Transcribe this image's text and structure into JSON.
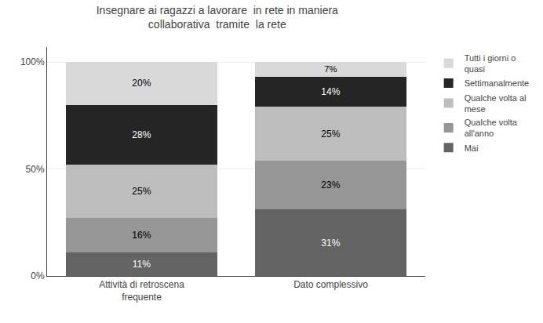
{
  "chart_data": {
    "type": "bar",
    "title": "Insegnare ai ragazzi a lavorare  in rete in maniera\ncollaborativa  tramite  la rete",
    "categories": [
      "Attività di retroscena\nfrequente",
      "Dato complessivo"
    ],
    "series": [
      {
        "name": "Mai",
        "color": "#636363",
        "values": [
          11,
          31
        ],
        "value_labels": [
          "11%",
          "31%"
        ]
      },
      {
        "name": "Qualche volta\nall'anno",
        "color": "#969696",
        "values": [
          16,
          23
        ],
        "value_labels": [
          "16%",
          "23%"
        ]
      },
      {
        "name": "Qualche volta al\nmese",
        "color": "#bdbdbd",
        "values": [
          25,
          25
        ],
        "value_labels": [
          "25%",
          "25%"
        ]
      },
      {
        "name": "Settimanalmente",
        "color": "#252525",
        "values": [
          28,
          14
        ],
        "value_labels": [
          "28%",
          "14%"
        ]
      },
      {
        "name": "Tutti i giorni o\nquasi",
        "color": "#d9d9d9",
        "values": [
          20,
          7
        ],
        "value_labels": [
          "20%",
          "7%"
        ]
      }
    ],
    "stacked": true,
    "data_labels": true,
    "ylim": [
      0,
      107
    ],
    "yticks": [
      {
        "value": 0,
        "label": "0%"
      },
      {
        "value": 50,
        "label": "50%"
      },
      {
        "value": 100,
        "label": "100%"
      }
    ],
    "grid": true,
    "legend": "right"
  }
}
